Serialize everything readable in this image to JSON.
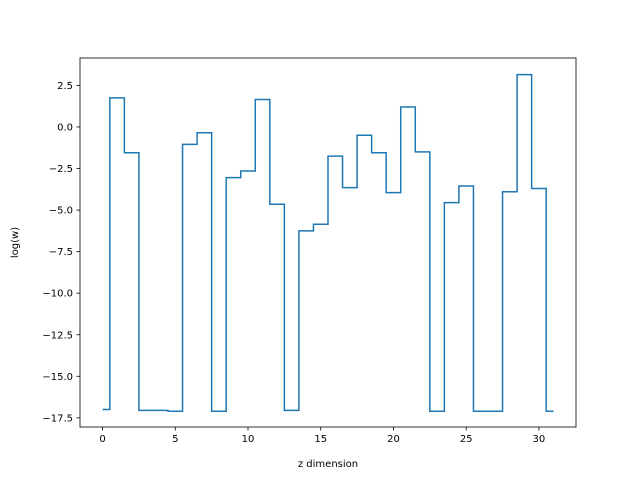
{
  "chart_data": {
    "type": "line",
    "style": "step-mid",
    "xlabel": "z dimension",
    "ylabel": "log(w)",
    "xlim": [
      -1.55,
      32.55
    ],
    "ylim": [
      -18.05,
      4.15
    ],
    "xticks": [
      0,
      5,
      10,
      15,
      20,
      25,
      30
    ],
    "xtick_labels": [
      "0",
      "5",
      "10",
      "15",
      "20",
      "25",
      "30"
    ],
    "yticks": [
      2.5,
      0.0,
      -2.5,
      -5.0,
      -7.5,
      -10.0,
      -12.5,
      -15.0,
      -17.5
    ],
    "ytick_labels": [
      "2.5",
      "0.0",
      "−2.5",
      "−5.0",
      "−7.5",
      "−10.0",
      "−12.5",
      "−15.0",
      "−17.5"
    ],
    "grid": false,
    "line_color": "#1f77b4",
    "x": [
      0,
      1,
      2,
      3,
      4,
      5,
      6,
      7,
      8,
      9,
      10,
      11,
      12,
      13,
      14,
      15,
      16,
      17,
      18,
      19,
      20,
      21,
      22,
      23,
      24,
      25,
      26,
      27,
      28,
      29,
      30,
      31
    ],
    "y": [
      -17.0,
      1.75,
      -1.55,
      -17.05,
      -17.05,
      -17.1,
      -1.05,
      -0.35,
      -17.1,
      -3.05,
      -2.65,
      1.65,
      -4.65,
      -17.05,
      -6.25,
      -5.85,
      -1.75,
      -3.65,
      -0.5,
      -1.55,
      -3.95,
      1.2,
      -1.5,
      -17.1,
      -4.55,
      -3.55,
      -17.1,
      -17.1,
      -3.9,
      3.15,
      -3.7,
      -17.1
    ]
  }
}
